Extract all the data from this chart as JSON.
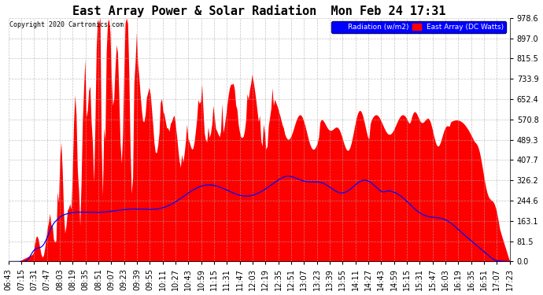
{
  "title": "East Array Power & Solar Radiation  Mon Feb 24 17:31",
  "copyright": "Copyright 2020 Cartronics.com",
  "legend_labels": [
    "Radiation (w/m2)",
    "East Array (DC Watts)"
  ],
  "legend_colors_bg": [
    "blue",
    "red"
  ],
  "ymax": 978.6,
  "ymin": 0.0,
  "yticks": [
    0.0,
    81.5,
    163.1,
    244.6,
    326.2,
    407.7,
    489.3,
    570.8,
    652.4,
    733.9,
    815.5,
    897.0,
    978.6
  ],
  "background_color": "#ffffff",
  "grid_color": "#aaaaaa",
  "title_fontsize": 11,
  "axis_fontsize": 7,
  "x_labels": [
    "06:43",
    "07:15",
    "07:31",
    "07:47",
    "08:03",
    "08:19",
    "08:35",
    "08:51",
    "09:07",
    "09:23",
    "09:39",
    "09:55",
    "10:11",
    "10:27",
    "10:43",
    "10:59",
    "11:15",
    "11:31",
    "11:47",
    "12:03",
    "12:19",
    "12:35",
    "12:51",
    "13:07",
    "13:23",
    "13:39",
    "13:55",
    "14:11",
    "14:27",
    "14:43",
    "14:59",
    "15:15",
    "15:31",
    "15:47",
    "16:03",
    "16:19",
    "16:35",
    "16:51",
    "17:07",
    "17:23"
  ]
}
